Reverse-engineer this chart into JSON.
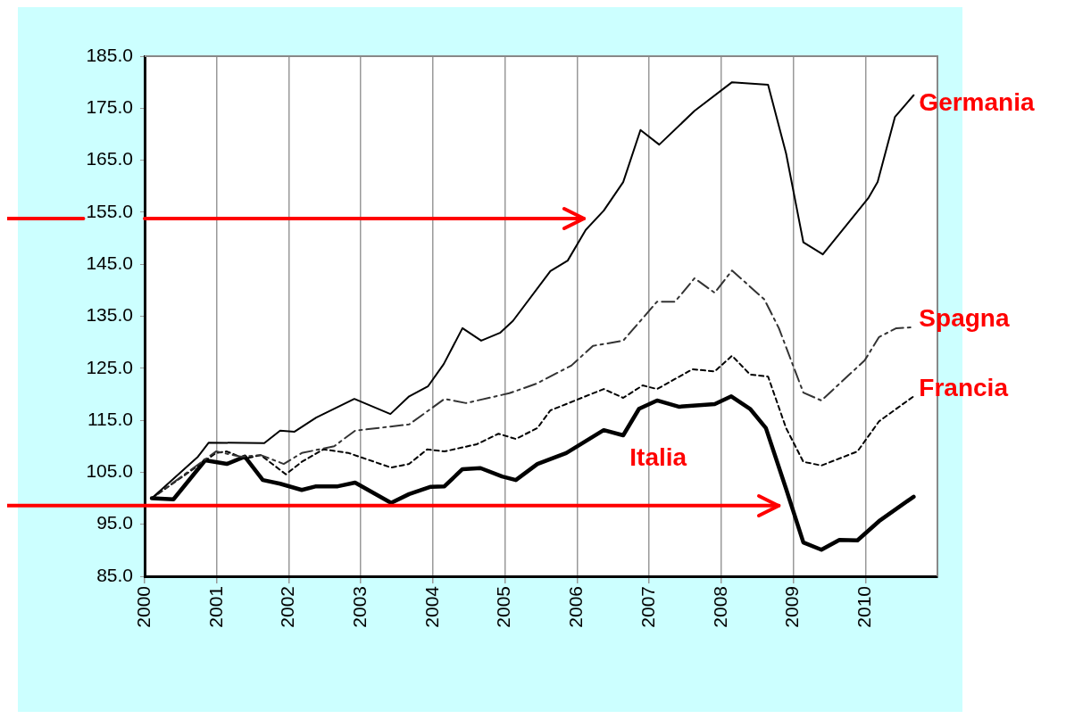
{
  "chart_data": {
    "type": "line",
    "xlim": [
      2000,
      2011
    ],
    "xticks": [
      2000,
      2001,
      2002,
      2003,
      2004,
      2005,
      2006,
      2007,
      2008,
      2009,
      2010
    ],
    "ylim": [
      85,
      185
    ],
    "yticks": [
      {
        "value": 85,
        "label": "85.0"
      },
      {
        "value": 95,
        "label": "95.0"
      },
      {
        "value": 105,
        "label": "105.0"
      },
      {
        "value": 115,
        "label": "115.0"
      },
      {
        "value": 125,
        "label": "125.0"
      },
      {
        "value": 135,
        "label": "135.0"
      },
      {
        "value": 145,
        "label": "145.0"
      },
      {
        "value": 155,
        "label": "155.0"
      },
      {
        "value": 165,
        "label": "165.0"
      },
      {
        "value": 175,
        "label": "175.0"
      },
      {
        "value": 185,
        "label": "185.0"
      }
    ],
    "grid": "x",
    "legend": false,
    "marker": "none",
    "ref_lines": [
      {
        "axis": "y",
        "value": 153.8,
        "color": "#ff0000"
      },
      {
        "axis": "y",
        "value": 98.6,
        "color": "#ff0000"
      }
    ],
    "series": [
      {
        "name": "Germania",
        "color": "#000000",
        "line_style": "solid",
        "x": [
          2000.1,
          2000.74,
          2000.89,
          2001.66,
          2001.88,
          2002.08,
          2002.38,
          2002.91,
          2003.41,
          2003.67,
          2003.93,
          2004.15,
          2004.41,
          2004.67,
          2004.93,
          2005.11,
          2005.63,
          2005.87,
          2006.12,
          2006.37,
          2006.64,
          2006.88,
          2007.14,
          2007.63,
          2008.15,
          2008.65,
          2008.9,
          2009.14,
          2009.41,
          2010.04,
          2010.17,
          2010.41,
          2010.67
        ],
        "values": [
          100,
          108,
          110.7,
          110.6,
          113,
          112.8,
          115.5,
          119.1,
          116.2,
          119.6,
          121.5,
          125.8,
          132.7,
          130.3,
          131.8,
          134.1,
          143.7,
          145.7,
          151.6,
          155.3,
          160.8,
          170.8,
          168,
          174.5,
          180,
          179.5,
          166.3,
          149.2,
          146.9,
          157.7,
          160.8,
          173.3,
          177.5
        ]
      },
      {
        "name": "Spagna",
        "color": "#333333",
        "line_style": "dashed",
        "x": [
          2000.1,
          2000.99,
          2001.34,
          2001.61,
          2001.93,
          2002.18,
          2002.63,
          2002.92,
          2003.67,
          2004.16,
          2004.46,
          2005.06,
          2005.43,
          2005.92,
          2006.22,
          2006.64,
          2007.11,
          2007.36,
          2007.63,
          2007.91,
          2008.15,
          2008.6,
          2008.8,
          2009.14,
          2009.39,
          2009.99,
          2010.19,
          2010.43,
          2010.67
        ],
        "values": [
          100,
          109,
          108,
          108.3,
          106.6,
          108.7,
          110,
          113,
          114.2,
          119.1,
          118.3,
          120.2,
          122,
          125.5,
          129.3,
          130.3,
          137.8,
          137.8,
          142.3,
          139.5,
          143.8,
          138.2,
          132.7,
          120.3,
          118.8,
          126.5,
          131,
          132.7,
          132.9
        ]
      },
      {
        "name": "Francia",
        "color": "#000000",
        "line_style": "dotted",
        "x": [
          2000.1,
          2000.99,
          2001.14,
          2001.39,
          2001.61,
          2001.96,
          2002.18,
          2002.48,
          2002.83,
          2003.42,
          2003.67,
          2003.92,
          2004.16,
          2004.61,
          2004.91,
          2005.15,
          2005.45,
          2005.63,
          2006.37,
          2006.64,
          2006.91,
          2007.11,
          2007.6,
          2007.91,
          2008.15,
          2008.4,
          2008.65,
          2008.9,
          2009.14,
          2009.39,
          2009.89,
          2010.19,
          2010.67
        ],
        "values": [
          100,
          108.7,
          109,
          107.6,
          108.3,
          104.6,
          107,
          109.4,
          108.7,
          105.9,
          106.6,
          109.4,
          109,
          110.4,
          112.4,
          111.4,
          113.5,
          116.9,
          121,
          119.3,
          121.7,
          121,
          124.8,
          124.4,
          127.4,
          123.8,
          123.4,
          113.5,
          107,
          106.3,
          109,
          114.8,
          119.6
        ]
      },
      {
        "name": "Italia",
        "color": "#000000",
        "line_style": "solid",
        "x": [
          2000.1,
          2000.4,
          2000.84,
          2001.14,
          2001.39,
          2001.64,
          2001.88,
          2002.18,
          2002.38,
          2002.68,
          2002.92,
          2003.42,
          2003.67,
          2003.97,
          2004.16,
          2004.41,
          2004.66,
          2004.96,
          2005.15,
          2005.45,
          2005.85,
          2006.37,
          2006.64,
          2006.86,
          2007.11,
          2007.41,
          2007.91,
          2008.14,
          2008.4,
          2008.62,
          2008.9,
          2009.14,
          2009.39,
          2009.64,
          2009.89,
          2010.19,
          2010.67
        ],
        "values": [
          100,
          99.8,
          107.3,
          106.6,
          108,
          103.5,
          102.8,
          101.6,
          102.3,
          102.3,
          103,
          99.1,
          100.8,
          102.2,
          102.3,
          105.6,
          105.8,
          104.2,
          103.5,
          106.6,
          108.7,
          113.1,
          112.1,
          117.2,
          118.8,
          117.6,
          118.1,
          119.6,
          117.2,
          113.5,
          101.8,
          91.5,
          90.1,
          92,
          91.9,
          95.6,
          100.3
        ]
      }
    ]
  }
}
